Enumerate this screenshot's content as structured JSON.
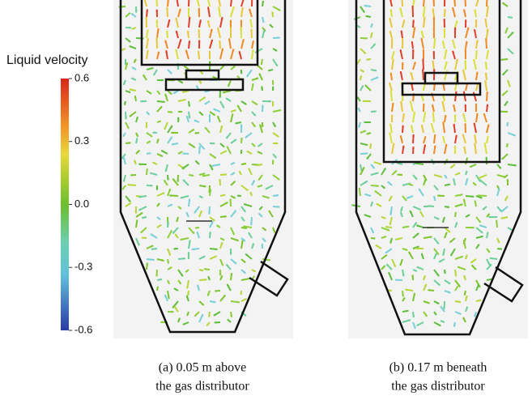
{
  "colorbar": {
    "title": "Liquid velocity",
    "ticks": [
      0.6,
      0.3,
      {
        "value": 0,
        "label": "0.0"
      },
      -0.3,
      -0.6
    ],
    "range": [
      -0.6,
      0.6
    ]
  },
  "panels": [
    {
      "caption": [
        "(a) 0.05 m above",
        "the gas distributor"
      ]
    },
    {
      "caption": [
        "(b) 0.17 m beneath",
        "the gas distributor"
      ]
    }
  ]
}
